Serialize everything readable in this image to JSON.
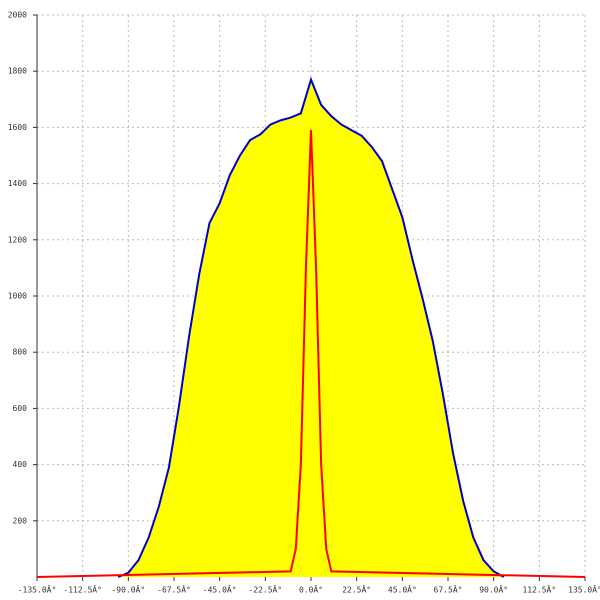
{
  "chart_data": {
    "type": "area",
    "xlim": [
      -135,
      135
    ],
    "xticks": [
      {
        "value": -135,
        "label": "-135.0Â°"
      },
      {
        "value": -112.5,
        "label": "-112.5Â°"
      },
      {
        "value": -90,
        "label": "-90.0Â°"
      },
      {
        "value": -67.5,
        "label": "-67.5Â°"
      },
      {
        "value": -45,
        "label": "-45.0Â°"
      },
      {
        "value": -22.5,
        "label": "-22.5Â°"
      },
      {
        "value": 0,
        "label": "0.0Â°"
      },
      {
        "value": 22.5,
        "label": "22.5Â°"
      },
      {
        "value": 45,
        "label": "45.0Â°"
      },
      {
        "value": 67.5,
        "label": "67.5Â°"
      },
      {
        "value": 90,
        "label": "90.0Â°"
      },
      {
        "value": 112.5,
        "label": "112.5Â°"
      },
      {
        "value": 135,
        "label": "135.0Â°"
      }
    ],
    "ylim": [
      0,
      2000
    ],
    "yticks": [
      200,
      400,
      600,
      800,
      1000,
      1200,
      1400,
      1600,
      1800,
      2000
    ],
    "grid": true,
    "series": [
      {
        "type": "area",
        "color": "#0000cc",
        "fill": "#ffff00",
        "x": [
          -95,
          -90,
          -85,
          -80,
          -75,
          -70,
          -65,
          -60,
          -55,
          -50,
          -45,
          -40,
          -35,
          -30,
          -25,
          -20,
          -15,
          -10,
          -5,
          0,
          5,
          10,
          15,
          20,
          25,
          30,
          35,
          40,
          45,
          50,
          55,
          60,
          65,
          70,
          75,
          80,
          85,
          90,
          95
        ],
        "values": [
          0,
          15,
          60,
          140,
          250,
          390,
          610,
          860,
          1080,
          1260,
          1330,
          1430,
          1500,
          1555,
          1575,
          1610,
          1625,
          1635,
          1650,
          1770,
          1680,
          1640,
          1610,
          1590,
          1570,
          1530,
          1480,
          1380,
          1280,
          1130,
          990,
          840,
          650,
          440,
          270,
          140,
          60,
          20,
          0
        ]
      },
      {
        "type": "line",
        "color": "#ff0000",
        "x": [
          -135,
          -10,
          -7.5,
          -5,
          -2.5,
          0,
          2.5,
          5,
          7.5,
          10,
          135
        ],
        "values": [
          0,
          20,
          100,
          400,
          1100,
          1590,
          1100,
          400,
          100,
          20,
          0
        ]
      }
    ]
  }
}
